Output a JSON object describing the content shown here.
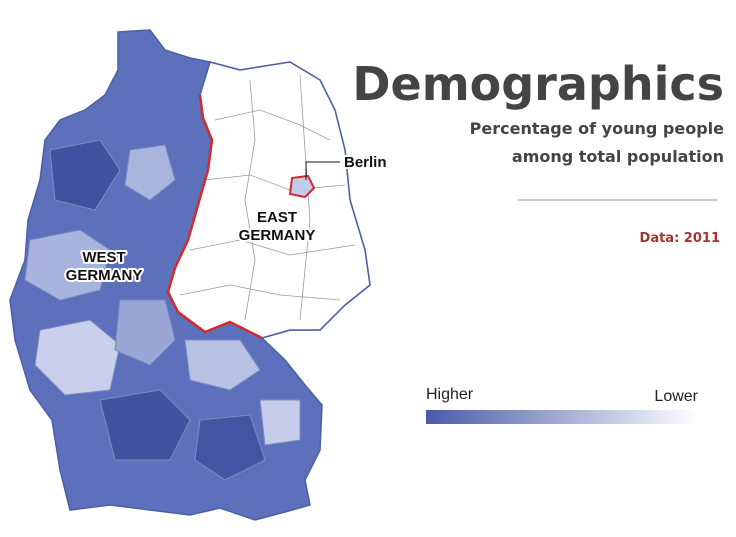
{
  "header": {
    "title": "Demographics",
    "subtitle_lines": [
      "Percentage of young people",
      "among total population"
    ],
    "source": "Data: 2011"
  },
  "legend": {
    "high": "Higher",
    "low": "Lower"
  },
  "map_labels": {
    "berlin": "Berlin",
    "west": [
      "WEST",
      "GERMANY"
    ],
    "east": [
      "EAST",
      "GERMANY"
    ]
  }
}
